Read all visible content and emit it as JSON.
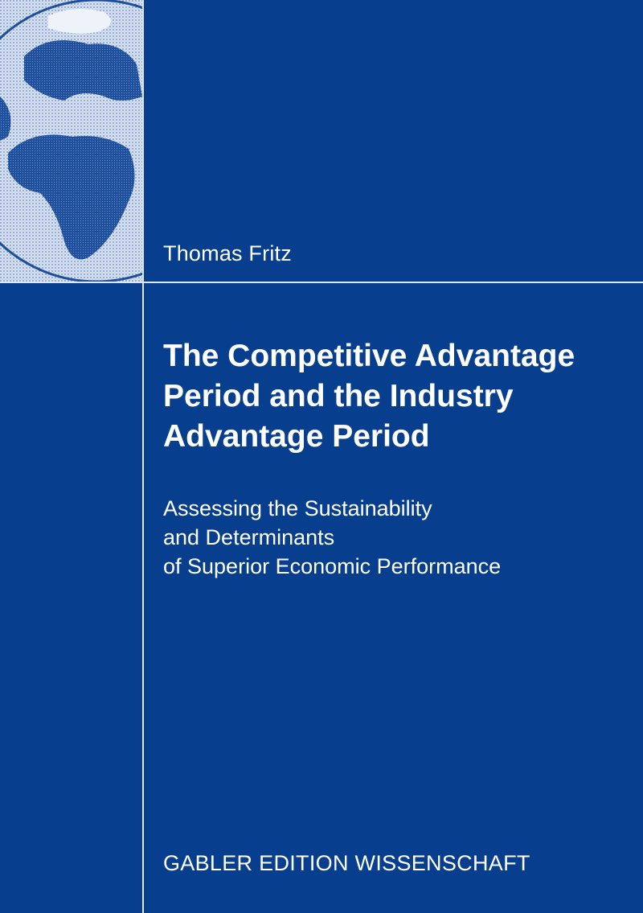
{
  "author": "Thomas Fritz",
  "title_lines": [
    "The Competitive Advantage",
    "Period and the Industry",
    "Advantage Period"
  ],
  "subtitle_lines": [
    "Assessing the Sustainability",
    "and Determinants",
    "of Superior Economic Performance"
  ],
  "series": "GABLER EDITION WISSENSCHAFT",
  "colors": {
    "background": "#073f8e",
    "text": "#ffffff",
    "globe_light": "#c9d6ea",
    "globe_dark": "#1d4f9c"
  },
  "icons": {
    "globe": "globe-illustration"
  }
}
